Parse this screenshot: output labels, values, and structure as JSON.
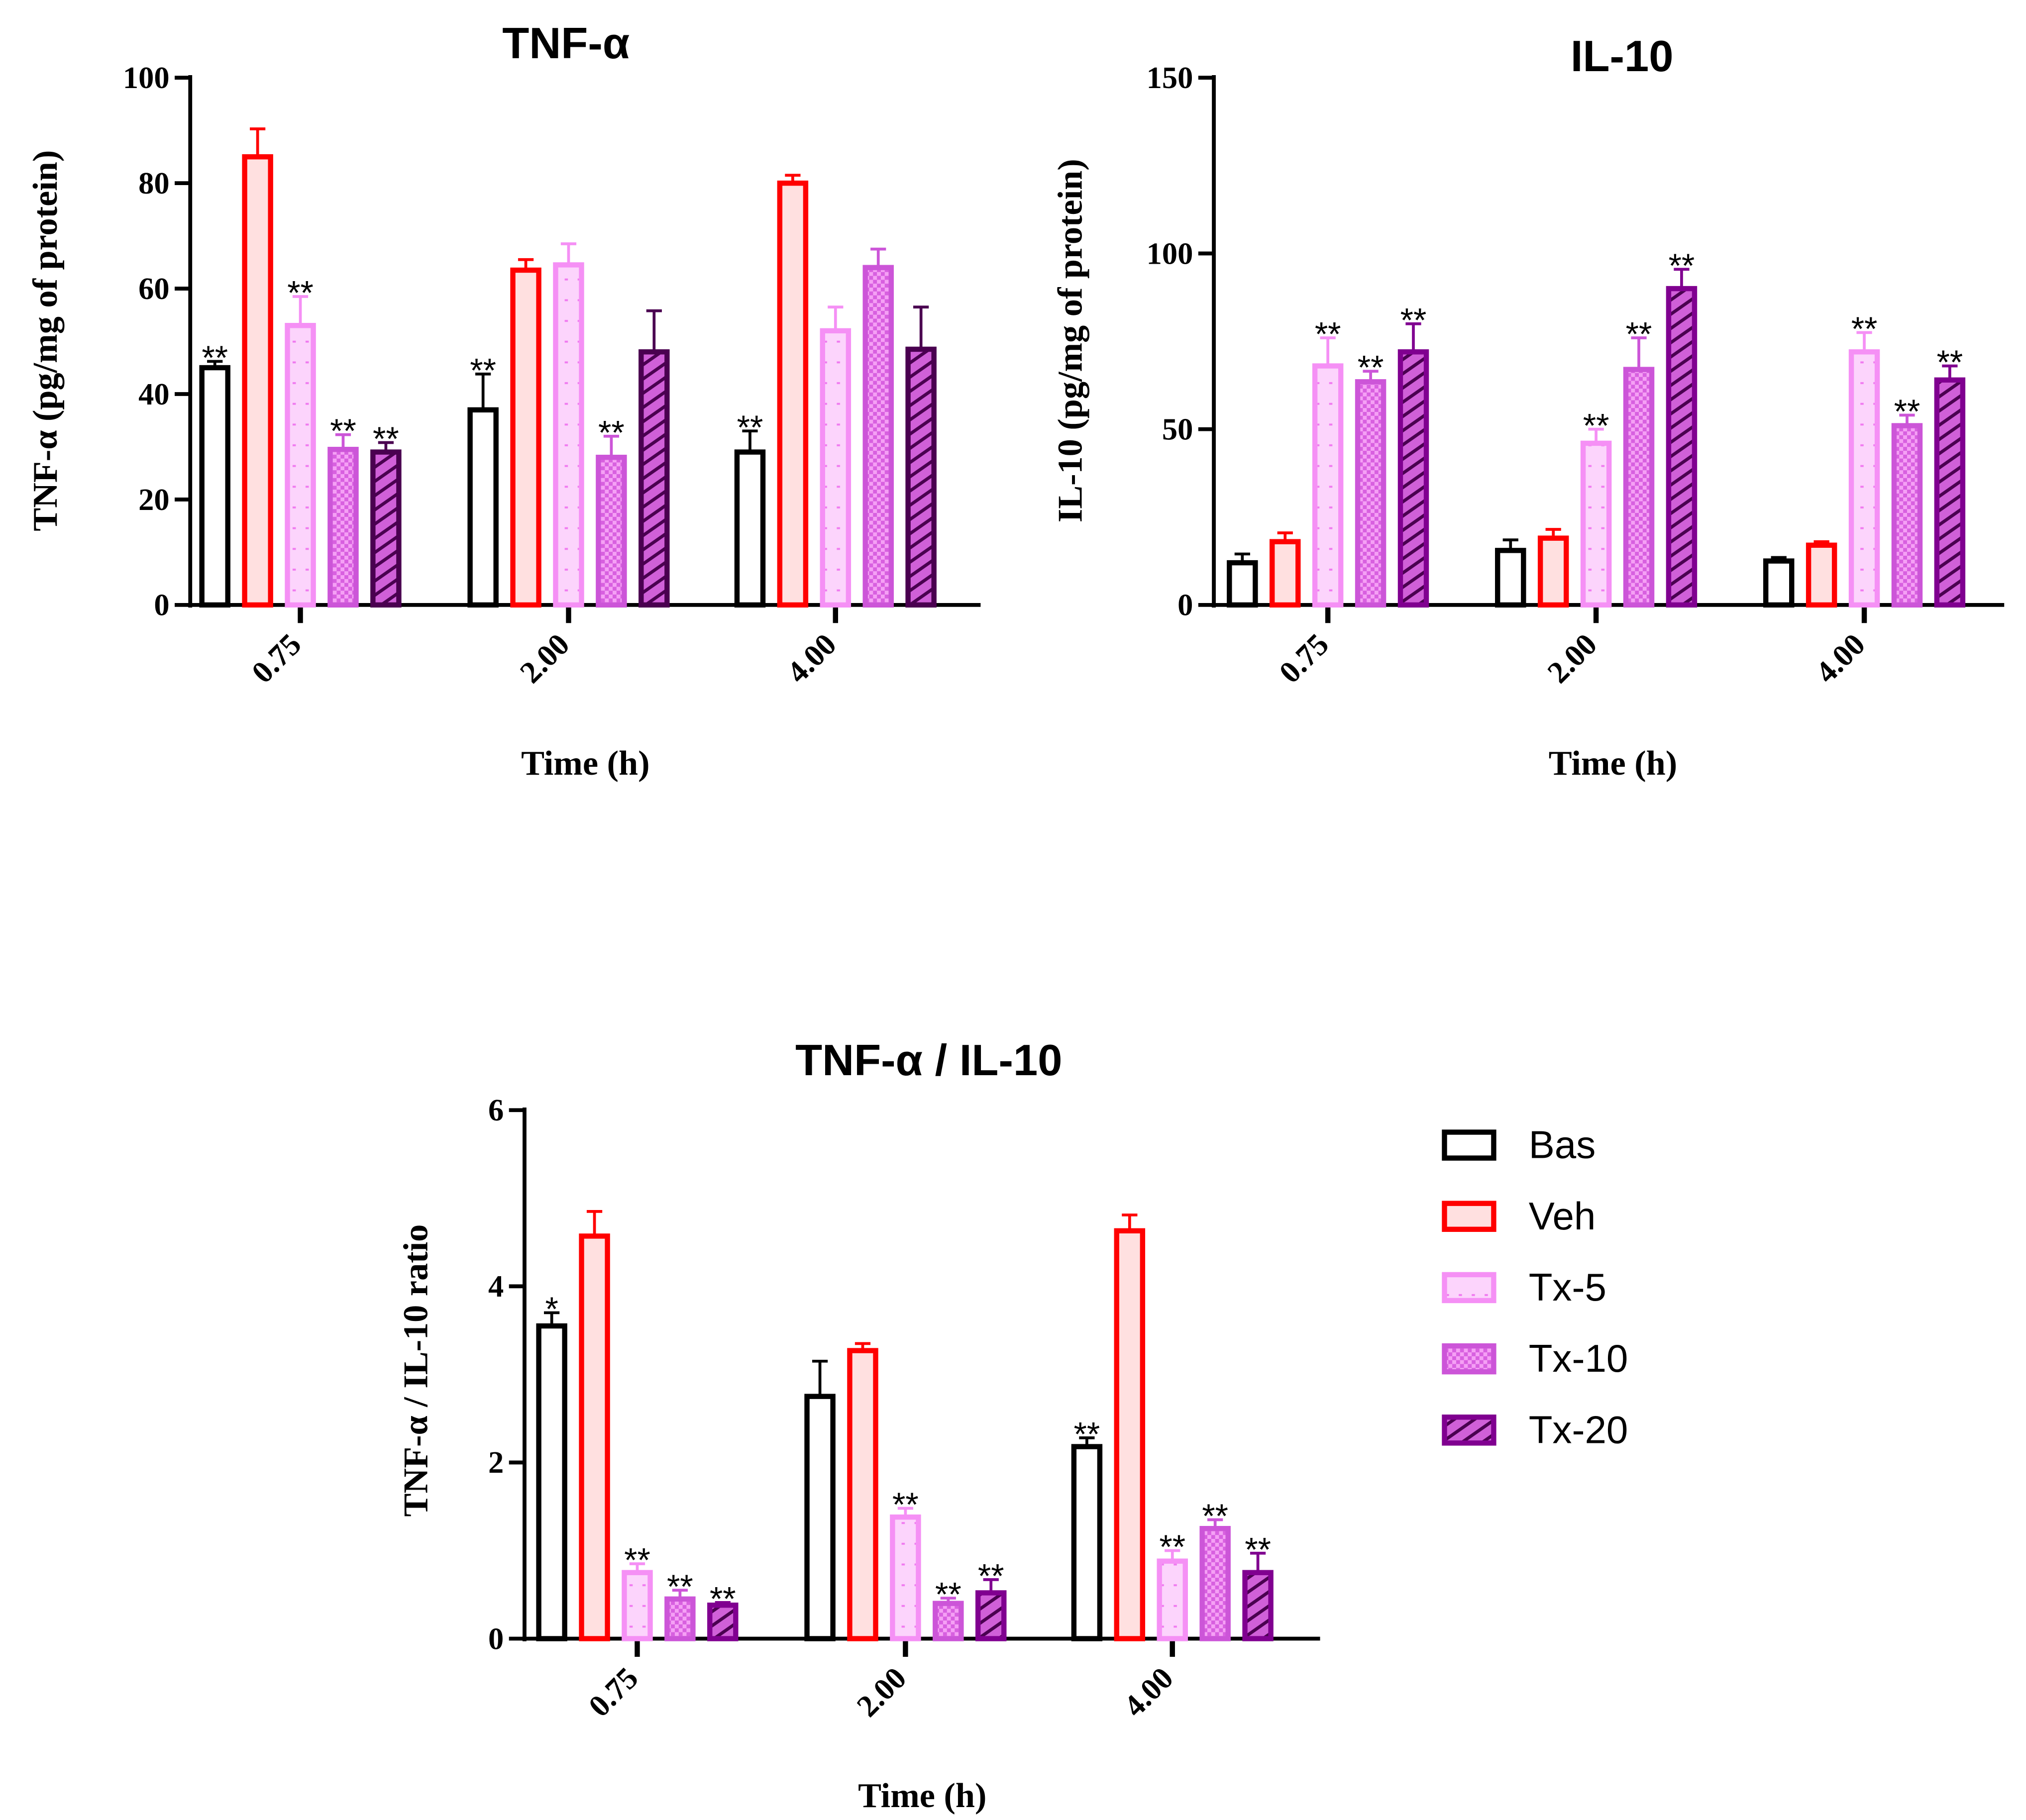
{
  "series_styles": [
    {
      "name": "Bas",
      "stroke": "#000000",
      "fill": "#ffffff",
      "pattern": "none"
    },
    {
      "name": "Veh",
      "stroke": "#ff0000",
      "fill": "#ffe0e0",
      "pattern": "none"
    },
    {
      "name": "Tx-5",
      "stroke": "#f590f5",
      "fill": "#fcd4fc",
      "pattern": "dots"
    },
    {
      "name": "Tx-10",
      "stroke": "#cc55d8",
      "fill": "#f08ef0",
      "pattern": "checker"
    },
    {
      "name": "Tx-20",
      "stroke": "#800090",
      "fill": "#d060d8",
      "pattern": "hatch"
    }
  ],
  "legend": [
    "Bas",
    "Veh",
    "Tx-5",
    "Tx-10",
    "Tx-20"
  ],
  "chart_data": [
    {
      "type": "bar",
      "title": "TNF-α",
      "xlabel": "Time (h)",
      "ylabel": "TNF-α (pg/mg of protein)",
      "categories": [
        "0.75",
        "2.00",
        "4.00"
      ],
      "ylim": [
        0,
        100
      ],
      "yticks": [
        0,
        20,
        40,
        60,
        80,
        100
      ],
      "series": [
        {
          "name": "Bas",
          "values": [
            45,
            37,
            29
          ],
          "errors": [
            1.2,
            6.8,
            4
          ],
          "sig": [
            "**",
            "**",
            "**"
          ]
        },
        {
          "name": "Veh",
          "values": [
            85,
            63.5,
            80
          ],
          "errors": [
            5.3,
            2,
            1.5
          ],
          "sig": [
            "",
            "",
            ""
          ]
        },
        {
          "name": "Tx-5",
          "values": [
            53,
            64.5,
            52
          ],
          "errors": [
            5.5,
            4,
            4.5
          ],
          "sig": [
            "**",
            "",
            ""
          ]
        },
        {
          "name": "Tx-10",
          "values": [
            29.5,
            28,
            64
          ],
          "errors": [
            2.8,
            4,
            3.5
          ],
          "sig": [
            "**",
            "**",
            ""
          ]
        },
        {
          "name": "Tx-20",
          "values": [
            29,
            48,
            48.5
          ],
          "errors": [
            1.8,
            7.8,
            8
          ],
          "sig": [
            "**",
            "",
            ""
          ]
        }
      ]
    },
    {
      "type": "bar",
      "title": "IL-10",
      "xlabel": "Time (h)",
      "ylabel": "IL-10 (pg/mg of protein)",
      "categories": [
        "0.75",
        "2.00",
        "4.00"
      ],
      "ylim": [
        0,
        150
      ],
      "yticks": [
        0,
        50,
        100,
        150
      ],
      "series": [
        {
          "name": "Bas",
          "values": [
            12,
            15.5,
            12.5
          ],
          "errors": [
            2.5,
            3,
            1
          ],
          "sig": [
            "",
            "",
            ""
          ]
        },
        {
          "name": "Veh",
          "values": [
            18,
            19,
            17
          ],
          "errors": [
            2.5,
            2.5,
            1
          ],
          "sig": [
            "",
            "",
            ""
          ]
        },
        {
          "name": "Tx-5",
          "values": [
            68,
            46,
            72
          ],
          "errors": [
            8,
            4,
            5.5
          ],
          "sig": [
            "**",
            "**",
            "**"
          ]
        },
        {
          "name": "Tx-10",
          "values": [
            63.5,
            67,
            51
          ],
          "errors": [
            3,
            9,
            3
          ],
          "sig": [
            "**",
            "**",
            "**"
          ]
        },
        {
          "name": "Tx-20",
          "values": [
            72,
            90,
            64
          ],
          "errors": [
            8,
            5.5,
            4
          ],
          "sig": [
            "**",
            "**",
            "**"
          ]
        }
      ]
    },
    {
      "type": "bar",
      "title": "TNF-α / IL-10",
      "xlabel": "Time (h)",
      "ylabel": "TNF-α / IL-10 ratio",
      "categories": [
        "0.75",
        "2.00",
        "4.00"
      ],
      "ylim": [
        0,
        6
      ],
      "yticks": [
        0,
        2,
        4,
        6
      ],
      "series": [
        {
          "name": "Bas",
          "values": [
            3.55,
            2.75,
            2.18
          ],
          "errors": [
            0.15,
            0.4,
            0.1
          ],
          "sig": [
            "*",
            "",
            "**"
          ]
        },
        {
          "name": "Veh",
          "values": [
            4.57,
            3.27,
            4.63
          ],
          "errors": [
            0.28,
            0.08,
            0.18
          ],
          "sig": [
            "",
            "",
            ""
          ]
        },
        {
          "name": "Tx-5",
          "values": [
            0.75,
            1.38,
            0.88
          ],
          "errors": [
            0.1,
            0.1,
            0.12
          ],
          "sig": [
            "**",
            "**",
            "**"
          ]
        },
        {
          "name": "Tx-10",
          "values": [
            0.45,
            0.4,
            1.25
          ],
          "errors": [
            0.1,
            0.06,
            0.1
          ],
          "sig": [
            "**",
            "**",
            "**"
          ]
        },
        {
          "name": "Tx-20",
          "values": [
            0.38,
            0.52,
            0.75
          ],
          "errors": [
            0.03,
            0.15,
            0.22
          ],
          "sig": [
            "**",
            "**",
            "**"
          ]
        }
      ]
    }
  ]
}
